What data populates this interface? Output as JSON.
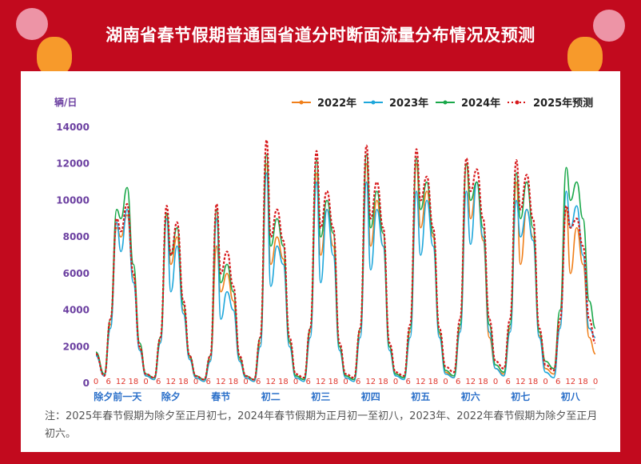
{
  "title": "湖南省春节假期普通国省道分时断面流量分布情况及预测",
  "footnote": "注：2025年春节假期为除夕至正月初七，2024年春节假期为正月初一至初八，2023年、2022年春节假期为除夕至正月初六。",
  "chart_data": {
    "type": "line",
    "title": "湖南省春节假期普通国省道分时断面流量分布情况及预测",
    "ylabel": "辆/日",
    "ylim": [
      0,
      14000
    ],
    "yticks": [
      0,
      2000,
      4000,
      6000,
      8000,
      10000,
      12000,
      14000
    ],
    "days": [
      "除夕前一天",
      "除夕",
      "春节",
      "初二",
      "初三",
      "初四",
      "初五",
      "初六",
      "初七",
      "初八"
    ],
    "hour_ticks": [
      0,
      6,
      12,
      18
    ],
    "sample_hours": [
      0,
      4,
      7,
      10,
      12,
      15,
      18,
      21
    ],
    "legend_position": "top-right",
    "series": [
      {
        "name": "2022年",
        "color": "#f07f1a",
        "style": "solid",
        "values": [
          1600,
          400,
          3200,
          8500,
          8000,
          9200,
          5800,
          1900,
          400,
          200,
          2300,
          9200,
          6500,
          8000,
          4000,
          1400,
          300,
          100,
          1300,
          7500,
          5000,
          6000,
          4500,
          1300,
          300,
          100,
          2200,
          12000,
          6500,
          8000,
          6800,
          2200,
          400,
          200,
          2800,
          11500,
          7000,
          9500,
          7500,
          2000,
          400,
          200,
          2800,
          12000,
          7500,
          10000,
          7500,
          2000,
          500,
          300,
          2800,
          12000,
          8500,
          10500,
          8000,
          2700,
          600,
          300,
          3000,
          12000,
          9000,
          11000,
          7800,
          2500,
          800,
          500,
          3000,
          11000,
          6500,
          9500,
          8000,
          2600,
          800,
          500,
          3200,
          9500,
          6000,
          8500,
          6500,
          2500,
          1600
        ]
      },
      {
        "name": "2023年",
        "color": "#1ea7db",
        "style": "solid",
        "values": [
          1500,
          400,
          3000,
          8800,
          7200,
          9500,
          5500,
          1800,
          400,
          200,
          2200,
          9000,
          5000,
          7500,
          3800,
          1300,
          300,
          100,
          1200,
          9000,
          3500,
          5000,
          4000,
          1200,
          300,
          100,
          2000,
          11500,
          5300,
          7500,
          6500,
          2000,
          300,
          100,
          2500,
          11000,
          5500,
          9500,
          7000,
          1800,
          300,
          100,
          2500,
          11000,
          6200,
          9500,
          7500,
          1800,
          400,
          200,
          2500,
          10500,
          7000,
          10000,
          7500,
          2500,
          500,
          300,
          2800,
          10500,
          7600,
          11000,
          8000,
          2800,
          800,
          400,
          2800,
          10000,
          8000,
          9500,
          7800,
          2500,
          600,
          300,
          3000,
          10500,
          8500,
          9700,
          7000,
          3000,
          2500
        ]
      },
      {
        "name": "2024年",
        "color": "#1aa84a",
        "style": "solid",
        "values": [
          1700,
          500,
          3500,
          9500,
          9000,
          10700,
          6500,
          2200,
          500,
          300,
          2500,
          9300,
          7000,
          8500,
          4300,
          1500,
          400,
          200,
          1500,
          9500,
          5500,
          6500,
          5000,
          1400,
          400,
          200,
          2500,
          12500,
          7500,
          9000,
          7500,
          2300,
          400,
          200,
          3000,
          12200,
          8000,
          10000,
          8200,
          2000,
          400,
          200,
          3000,
          12500,
          8500,
          10500,
          8200,
          2000,
          500,
          300,
          3000,
          12300,
          9500,
          11000,
          8200,
          2800,
          700,
          400,
          3200,
          12000,
          10000,
          11000,
          8500,
          3200,
          1000,
          600,
          3200,
          11500,
          9000,
          11000,
          8500,
          2800,
          1200,
          800,
          4000,
          11800,
          10000,
          11000,
          9000,
          4500,
          3000
        ]
      },
      {
        "name": "2025年预测",
        "color": "#d7191c",
        "style": "dotted",
        "values": [
          1600,
          400,
          3500,
          9000,
          8300,
          9800,
          6000,
          2000,
          500,
          300,
          2500,
          9700,
          7000,
          8800,
          4500,
          1500,
          400,
          200,
          1500,
          9800,
          6000,
          7200,
          5300,
          1500,
          400,
          200,
          2500,
          13300,
          8000,
          9500,
          7800,
          2500,
          500,
          300,
          3000,
          12700,
          8500,
          10500,
          8500,
          2200,
          500,
          300,
          3000,
          13000,
          9000,
          11000,
          8500,
          2200,
          600,
          400,
          3200,
          12800,
          10000,
          11300,
          8500,
          3000,
          900,
          600,
          3500,
          12300,
          10500,
          11700,
          9000,
          3500,
          1200,
          800,
          3500,
          12200,
          9500,
          11400,
          9000,
          3000,
          1000,
          700,
          3500,
          9700,
          8500,
          9000,
          7500,
          3500,
          2200
        ]
      }
    ]
  }
}
